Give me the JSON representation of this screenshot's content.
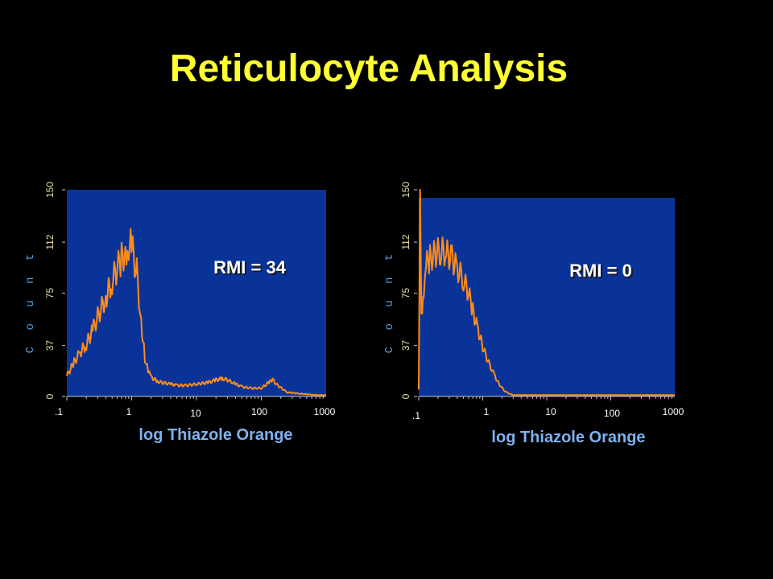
{
  "title": "Reticulocyte Analysis",
  "colors": {
    "title": "#ffff33",
    "plot_bg": "#0a3399",
    "trace": "#ff8c1a",
    "background": "#000000"
  },
  "chart_data": [
    {
      "type": "line",
      "annotation": "RMI  = 34",
      "xlabel": "log Thiazole Orange",
      "ylabel": "C o u n t",
      "x_scale": "log",
      "xlim": [
        0.1,
        1000
      ],
      "ylim": [
        0,
        150
      ],
      "x_ticks": [
        ".1",
        "1",
        "10",
        "100",
        "1000"
      ],
      "y_ticks": [
        "0",
        "37",
        "75",
        "112",
        "150"
      ],
      "series": [
        {
          "x": [
            0.1,
            0.13,
            0.16,
            0.2,
            0.25,
            0.3,
            0.4,
            0.5,
            0.6,
            0.7,
            0.8,
            0.9,
            1.0,
            1.2,
            1.4,
            1.6,
            1.8,
            2.0,
            2.5,
            3,
            4,
            5,
            7,
            10,
            15,
            20,
            25,
            30,
            40,
            50,
            70,
            100,
            130,
            150,
            180,
            250,
            400,
            700,
            1000
          ],
          "y": [
            15,
            25,
            32,
            38,
            48,
            58,
            72,
            84,
            93,
            100,
            106,
            112,
            108,
            90,
            55,
            28,
            18,
            14,
            11,
            10,
            9,
            8,
            8,
            9,
            10,
            12,
            13,
            12,
            9,
            7,
            6,
            6,
            10,
            12,
            8,
            3,
            2,
            1,
            1
          ]
        }
      ]
    },
    {
      "type": "line",
      "annotation": "RMI  = 0",
      "xlabel": "log Thiazole Orange",
      "ylabel": "C o u n t",
      "x_scale": "log",
      "xlim": [
        0.1,
        1000
      ],
      "ylim": [
        0,
        150
      ],
      "x_ticks": [
        ".1",
        "1",
        "10",
        "100",
        "1000"
      ],
      "y_ticks": [
        "0",
        "37",
        "75",
        "112",
        "150"
      ],
      "series": [
        {
          "x": [
            0.1,
            0.105,
            0.11,
            0.12,
            0.13,
            0.15,
            0.18,
            0.22,
            0.27,
            0.33,
            0.4,
            0.5,
            0.6,
            0.7,
            0.85,
            1.0,
            1.2,
            1.5,
            1.8,
            2.2,
            2.6,
            3,
            4,
            6,
            10,
            100,
            1000
          ],
          "y": [
            5,
            145,
            60,
            80,
            95,
            100,
            104,
            106,
            104,
            100,
            93,
            85,
            75,
            62,
            48,
            36,
            26,
            16,
            9,
            4,
            2,
            1,
            1,
            1,
            1,
            1,
            1
          ]
        }
      ]
    }
  ]
}
